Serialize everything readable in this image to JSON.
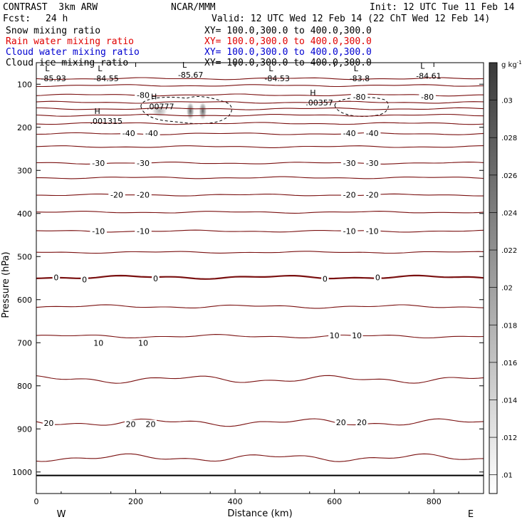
{
  "header": {
    "model": "CONTRAST  3km ARW",
    "org": "NCAR/MMM",
    "init": "Init: 12 UTC Tue 11 Feb 14",
    "fcst_label": "Fcst:",
    "fcst_value": "24 h",
    "valid": "Valid: 12 UTC Wed 12 Feb 14 (22 ChT Wed 12 Feb 14)"
  },
  "fields": [
    {
      "name": "Snow mixing ratio",
      "xy": "XY= 100.0,300.0 to 400.0,300.0",
      "color": "#000000"
    },
    {
      "name": "Rain water mixing ratio",
      "xy": "XY= 100.0,300.0 to 400.0,300.0",
      "color": "#e00000"
    },
    {
      "name": "Cloud water mixing ratio",
      "xy": "XY= 100.0,300.0 to 400.0,300.0",
      "color": "#0000d0"
    },
    {
      "name": "Cloud ice mixing ratio",
      "xy": "XY= 100.0,300.0 to 400.0,300.0",
      "color": "#000000"
    }
  ],
  "colors": {
    "contour": "#7a1010",
    "axis": "#000000"
  },
  "chart_data": {
    "type": "cross-section contour",
    "xlabel": "Distance (km)",
    "ylabel": "Pressure (hPa)",
    "xlim": [
      0,
      900
    ],
    "ylim": [
      1050,
      50
    ],
    "x_ticks": [
      0,
      200,
      400,
      600,
      800
    ],
    "y_ticks": [
      100,
      200,
      300,
      400,
      500,
      600,
      700,
      800,
      900,
      1000
    ],
    "x_tick_labels": [
      "0",
      "200",
      "400",
      "600",
      "800"
    ],
    "y_tick_labels": [
      "100",
      "200",
      "300",
      "400",
      "500",
      "600",
      "700",
      "800",
      "900",
      "1000"
    ],
    "end_labels": {
      "left": "W",
      "right": "E"
    },
    "surface_pressure": 1008,
    "contour_levels": [
      {
        "p": 87,
        "label": ""
      },
      {
        "p": 103,
        "label": ""
      },
      {
        "p": 125,
        "label": "-80"
      },
      {
        "p": 142,
        "label": ""
      },
      {
        "p": 157,
        "label": ""
      },
      {
        "p": 172,
        "label": ""
      },
      {
        "p": 191,
        "label": ""
      },
      {
        "p": 215,
        "label": "-40"
      },
      {
        "p": 245,
        "label": ""
      },
      {
        "p": 283,
        "label": "-30"
      },
      {
        "p": 317,
        "label": ""
      },
      {
        "p": 357,
        "label": "-20"
      },
      {
        "p": 397,
        "label": ""
      },
      {
        "p": 441,
        "label": "-10"
      },
      {
        "p": 490,
        "label": ""
      },
      {
        "p": 548,
        "label": "0",
        "bold": true
      },
      {
        "p": 616,
        "label": ""
      },
      {
        "p": 685,
        "label": "10"
      },
      {
        "p": 785,
        "label": ""
      },
      {
        "p": 885,
        "label": "20"
      },
      {
        "p": 967,
        "label": ""
      }
    ],
    "contour_labels": [
      {
        "x": 215,
        "p": 125,
        "text": "-80"
      },
      {
        "x": 650,
        "p": 129,
        "text": "-80"
      },
      {
        "x": 787,
        "p": 129,
        "text": "-80"
      },
      {
        "x": 186,
        "p": 214,
        "text": "-40"
      },
      {
        "x": 232,
        "p": 214,
        "text": "-40"
      },
      {
        "x": 630,
        "p": 214,
        "text": "-40"
      },
      {
        "x": 676,
        "p": 214,
        "text": "-40"
      },
      {
        "x": 125,
        "p": 283,
        "text": "-30"
      },
      {
        "x": 215,
        "p": 283,
        "text": "-30"
      },
      {
        "x": 630,
        "p": 283,
        "text": "-30"
      },
      {
        "x": 676,
        "p": 283,
        "text": "-30"
      },
      {
        "x": 162,
        "p": 357,
        "text": "-20"
      },
      {
        "x": 215,
        "p": 357,
        "text": "-20"
      },
      {
        "x": 630,
        "p": 357,
        "text": "-20"
      },
      {
        "x": 676,
        "p": 357,
        "text": "-20"
      },
      {
        "x": 125,
        "p": 441,
        "text": "-10"
      },
      {
        "x": 215,
        "p": 441,
        "text": "-10"
      },
      {
        "x": 630,
        "p": 441,
        "text": "-10"
      },
      {
        "x": 676,
        "p": 441,
        "text": "-10"
      },
      {
        "x": 40,
        "p": 548,
        "text": "0"
      },
      {
        "x": 97,
        "p": 553,
        "text": "0"
      },
      {
        "x": 240,
        "p": 551,
        "text": "0"
      },
      {
        "x": 581,
        "p": 552,
        "text": "0"
      },
      {
        "x": 687,
        "p": 548,
        "text": "0"
      },
      {
        "x": 600,
        "p": 683,
        "text": "10"
      },
      {
        "x": 645,
        "p": 683,
        "text": "10"
      },
      {
        "x": 125,
        "p": 700,
        "text": "10"
      },
      {
        "x": 215,
        "p": 700,
        "text": "10"
      },
      {
        "x": 25,
        "p": 886,
        "text": "20"
      },
      {
        "x": 190,
        "p": 889,
        "text": "20"
      },
      {
        "x": 230,
        "p": 889,
        "text": "20"
      },
      {
        "x": 613,
        "p": 885,
        "text": "20"
      },
      {
        "x": 655,
        "p": 885,
        "text": "20"
      }
    ],
    "extrema": [
      {
        "type": "L",
        "x": 12,
        "p": 83,
        "value": "-85.93"
      },
      {
        "type": "L",
        "x": 118,
        "p": 83,
        "value": "-84.55"
      },
      {
        "type": "L",
        "x": 288,
        "p": 75,
        "value": "-85.67"
      },
      {
        "type": "L",
        "x": 462,
        "p": 83,
        "value": "-84.53"
      },
      {
        "type": "L",
        "x": 633,
        "p": 83,
        "value": "-83.8"
      },
      {
        "type": "L",
        "x": 767,
        "p": 77,
        "value": "-84.61"
      },
      {
        "type": "H",
        "x": 111,
        "p": 182,
        "value": ".001315"
      },
      {
        "type": "H",
        "x": 225,
        "p": 148,
        "value": ".00777"
      },
      {
        "type": "H",
        "x": 545,
        "p": 139,
        "value": ".00357"
      }
    ],
    "shading": {
      "units": "g kg",
      "units_exp": "-1",
      "ticks": [
        ".03",
        ".028",
        ".026",
        ".024",
        ".022",
        ".02",
        ".018",
        ".016",
        ".014",
        ".012",
        ".01"
      ],
      "tick_values": [
        0.03,
        0.028,
        0.026,
        0.024,
        0.022,
        0.02,
        0.018,
        0.016,
        0.014,
        0.012,
        0.01
      ],
      "range": [
        0.009,
        0.032
      ]
    },
    "cloud_features": [
      {
        "x": 310,
        "p": 162,
        "value": 0.008
      },
      {
        "x": 335,
        "p": 162,
        "value": 0.009
      }
    ]
  }
}
